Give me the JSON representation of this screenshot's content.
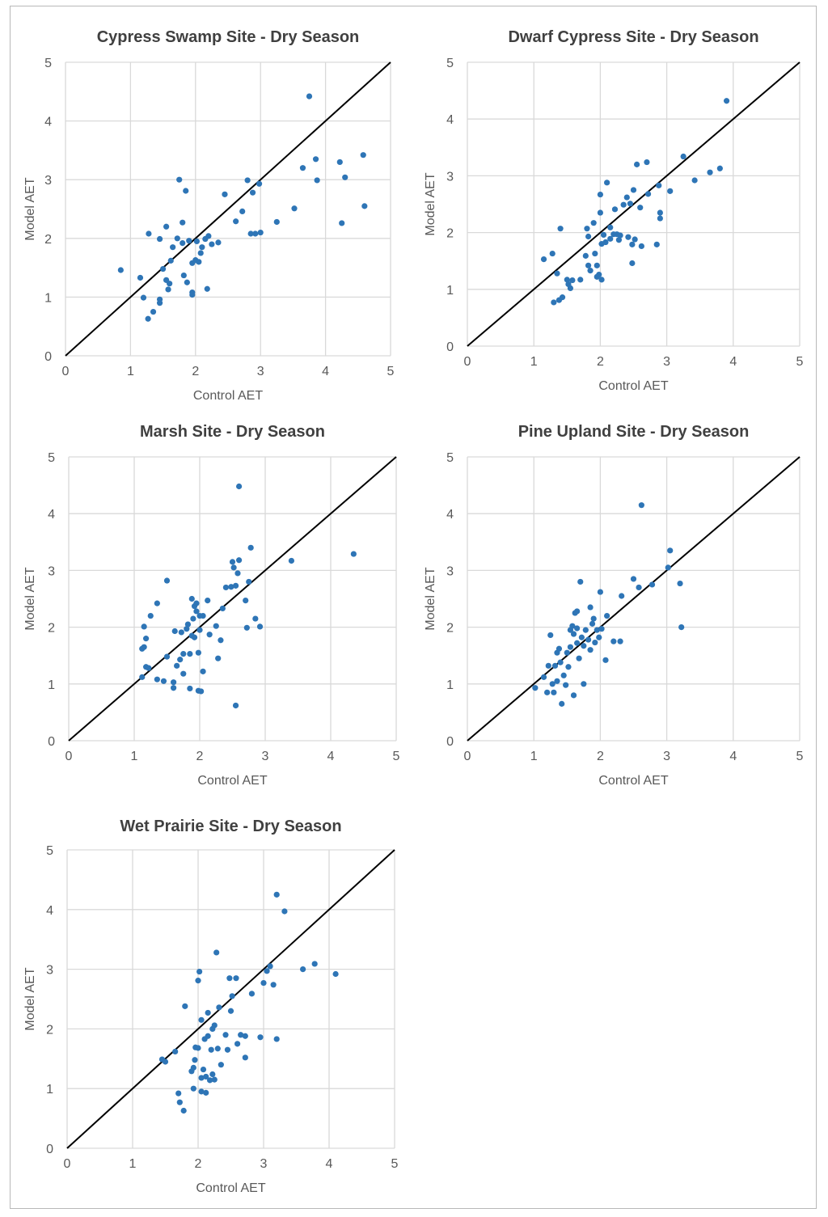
{
  "style": {
    "point_color": "#2e75b6",
    "grid_color": "#d9d9d9",
    "line_color": "#000000",
    "text_color": "#595959",
    "title_color": "#404040"
  },
  "chart_data": [
    {
      "type": "scatter",
      "title": "Cypress Swamp Site - Dry Season",
      "xlabel": "Control AET",
      "ylabel": "Model AET",
      "xlim": [
        0,
        5
      ],
      "ylim": [
        0,
        5
      ],
      "xticks": [
        0,
        1,
        2,
        3,
        4,
        5
      ],
      "yticks": [
        0,
        1,
        2,
        3,
        4,
        5
      ],
      "grid": true,
      "reference_line": "1:1",
      "points": [
        [
          0.85,
          1.46
        ],
        [
          1.15,
          1.33
        ],
        [
          1.2,
          0.99
        ],
        [
          1.28,
          2.08
        ],
        [
          1.27,
          0.63
        ],
        [
          1.35,
          0.75
        ],
        [
          1.45,
          1.99
        ],
        [
          1.45,
          0.96
        ],
        [
          1.45,
          0.9
        ],
        [
          1.5,
          1.48
        ],
        [
          1.55,
          2.2
        ],
        [
          1.55,
          1.29
        ],
        [
          1.58,
          1.13
        ],
        [
          1.6,
          1.23
        ],
        [
          1.62,
          1.62
        ],
        [
          1.65,
          1.85
        ],
        [
          1.72,
          2.0
        ],
        [
          1.75,
          3.0
        ],
        [
          1.8,
          1.92
        ],
        [
          1.8,
          2.27
        ],
        [
          1.82,
          1.37
        ],
        [
          1.85,
          2.81
        ],
        [
          1.87,
          1.25
        ],
        [
          1.9,
          1.96
        ],
        [
          1.95,
          1.08
        ],
        [
          1.95,
          1.04
        ],
        [
          1.95,
          1.58
        ],
        [
          2.0,
          1.63
        ],
        [
          2.02,
          1.95
        ],
        [
          2.05,
          1.6
        ],
        [
          2.08,
          1.75
        ],
        [
          2.1,
          1.85
        ],
        [
          2.15,
          1.99
        ],
        [
          2.18,
          1.14
        ],
        [
          2.2,
          2.04
        ],
        [
          2.25,
          1.9
        ],
        [
          2.35,
          1.93
        ],
        [
          2.45,
          2.75
        ],
        [
          2.62,
          2.29
        ],
        [
          2.72,
          2.46
        ],
        [
          2.8,
          2.99
        ],
        [
          2.85,
          2.08
        ],
        [
          2.88,
          2.78
        ],
        [
          2.92,
          2.08
        ],
        [
          2.98,
          2.93
        ],
        [
          3.0,
          2.1
        ],
        [
          3.25,
          2.28
        ],
        [
          3.52,
          2.51
        ],
        [
          3.65,
          3.2
        ],
        [
          3.75,
          4.42
        ],
        [
          3.85,
          3.35
        ],
        [
          3.87,
          2.99
        ],
        [
          4.22,
          3.3
        ],
        [
          4.25,
          2.26
        ],
        [
          4.3,
          3.04
        ],
        [
          4.58,
          3.42
        ],
        [
          4.6,
          2.55
        ]
      ]
    },
    {
      "type": "scatter",
      "title": "Dwarf Cypress Site - Dry Season",
      "xlabel": "Control AET",
      "ylabel": "Model AET",
      "xlim": [
        0,
        5
      ],
      "ylim": [
        0,
        5
      ],
      "xticks": [
        0,
        1,
        2,
        3,
        4,
        5
      ],
      "yticks": [
        0,
        1,
        2,
        3,
        4,
        5
      ],
      "grid": true,
      "reference_line": "1:1",
      "points": [
        [
          1.15,
          1.53
        ],
        [
          1.28,
          1.63
        ],
        [
          1.3,
          0.77
        ],
        [
          1.35,
          1.28
        ],
        [
          1.38,
          0.81
        ],
        [
          1.4,
          2.07
        ],
        [
          1.43,
          0.86
        ],
        [
          1.5,
          1.17
        ],
        [
          1.52,
          1.09
        ],
        [
          1.55,
          1.02
        ],
        [
          1.58,
          1.16
        ],
        [
          1.7,
          1.17
        ],
        [
          1.78,
          1.59
        ],
        [
          1.8,
          2.07
        ],
        [
          1.82,
          1.93
        ],
        [
          1.82,
          1.42
        ],
        [
          1.85,
          1.33
        ],
        [
          1.9,
          2.17
        ],
        [
          1.92,
          1.63
        ],
        [
          1.95,
          1.42
        ],
        [
          1.95,
          1.22
        ],
        [
          1.98,
          1.26
        ],
        [
          2.0,
          2.67
        ],
        [
          2.0,
          2.35
        ],
        [
          2.02,
          1.8
        ],
        [
          2.02,
          1.17
        ],
        [
          2.05,
          1.96
        ],
        [
          2.08,
          1.83
        ],
        [
          2.1,
          2.88
        ],
        [
          2.15,
          2.09
        ],
        [
          2.15,
          1.89
        ],
        [
          2.2,
          1.97
        ],
        [
          2.22,
          2.41
        ],
        [
          2.25,
          1.97
        ],
        [
          2.28,
          1.87
        ],
        [
          2.3,
          1.95
        ],
        [
          2.35,
          2.49
        ],
        [
          2.4,
          2.62
        ],
        [
          2.42,
          1.92
        ],
        [
          2.45,
          2.51
        ],
        [
          2.48,
          1.46
        ],
        [
          2.48,
          1.79
        ],
        [
          2.5,
          2.75
        ],
        [
          2.52,
          1.88
        ],
        [
          2.55,
          3.2
        ],
        [
          2.6,
          2.44
        ],
        [
          2.62,
          1.76
        ],
        [
          2.7,
          3.24
        ],
        [
          2.72,
          2.68
        ],
        [
          2.85,
          1.79
        ],
        [
          2.88,
          2.83
        ],
        [
          2.9,
          2.35
        ],
        [
          2.9,
          2.25
        ],
        [
          3.05,
          2.73
        ],
        [
          3.25,
          3.34
        ],
        [
          3.42,
          2.92
        ],
        [
          3.65,
          3.06
        ],
        [
          3.8,
          3.13
        ],
        [
          3.9,
          4.32
        ]
      ]
    },
    {
      "type": "scatter",
      "title": "Marsh Site - Dry Season",
      "xlabel": "Control AET",
      "ylabel": "Model AET",
      "xlim": [
        0,
        5
      ],
      "ylim": [
        0,
        5
      ],
      "xticks": [
        0,
        1,
        2,
        3,
        4,
        5
      ],
      "yticks": [
        0,
        1,
        2,
        3,
        4,
        5
      ],
      "grid": true,
      "reference_line": "1:1",
      "points": [
        [
          1.12,
          1.62
        ],
        [
          1.12,
          1.12
        ],
        [
          1.15,
          2.01
        ],
        [
          1.15,
          1.65
        ],
        [
          1.18,
          1.8
        ],
        [
          1.18,
          1.3
        ],
        [
          1.22,
          1.28
        ],
        [
          1.25,
          2.2
        ],
        [
          1.35,
          2.42
        ],
        [
          1.35,
          1.08
        ],
        [
          1.45,
          1.05
        ],
        [
          1.5,
          2.82
        ],
        [
          1.5,
          1.48
        ],
        [
          1.6,
          1.03
        ],
        [
          1.6,
          0.93
        ],
        [
          1.62,
          1.93
        ],
        [
          1.65,
          1.32
        ],
        [
          1.7,
          1.43
        ],
        [
          1.72,
          1.91
        ],
        [
          1.75,
          1.53
        ],
        [
          1.75,
          1.18
        ],
        [
          1.8,
          1.97
        ],
        [
          1.82,
          2.05
        ],
        [
          1.85,
          1.53
        ],
        [
          1.85,
          0.92
        ],
        [
          1.88,
          2.5
        ],
        [
          1.88,
          1.85
        ],
        [
          1.9,
          2.15
        ],
        [
          1.92,
          2.37
        ],
        [
          1.92,
          1.82
        ],
        [
          1.95,
          2.42
        ],
        [
          1.95,
          2.28
        ],
        [
          1.98,
          1.55
        ],
        [
          1.98,
          0.88
        ],
        [
          2.0,
          2.2
        ],
        [
          2.0,
          1.95
        ],
        [
          2.02,
          0.87
        ],
        [
          2.05,
          2.2
        ],
        [
          2.05,
          1.22
        ],
        [
          2.12,
          2.47
        ],
        [
          2.15,
          1.87
        ],
        [
          2.25,
          2.02
        ],
        [
          2.28,
          1.45
        ],
        [
          2.32,
          1.77
        ],
        [
          2.35,
          2.33
        ],
        [
          2.4,
          2.7
        ],
        [
          2.48,
          2.71
        ],
        [
          2.5,
          3.15
        ],
        [
          2.52,
          3.05
        ],
        [
          2.55,
          2.73
        ],
        [
          2.55,
          0.62
        ],
        [
          2.58,
          2.95
        ],
        [
          2.6,
          3.18
        ],
        [
          2.6,
          4.48
        ],
        [
          2.7,
          2.47
        ],
        [
          2.72,
          1.99
        ],
        [
          2.75,
          2.8
        ],
        [
          2.78,
          3.4
        ],
        [
          2.85,
          2.15
        ],
        [
          2.92,
          2.01
        ],
        [
          3.4,
          3.17
        ],
        [
          4.35,
          3.29
        ]
      ]
    },
    {
      "type": "scatter",
      "title": "Pine Upland Site - Dry Season",
      "xlabel": "Control AET",
      "ylabel": "Model AET",
      "xlim": [
        0,
        5
      ],
      "ylim": [
        0,
        5
      ],
      "xticks": [
        0,
        1,
        2,
        3,
        4,
        5
      ],
      "yticks": [
        0,
        1,
        2,
        3,
        4,
        5
      ],
      "grid": true,
      "reference_line": "1:1",
      "points": [
        [
          1.02,
          0.93
        ],
        [
          1.15,
          1.12
        ],
        [
          1.2,
          0.85
        ],
        [
          1.22,
          1.32
        ],
        [
          1.25,
          1.86
        ],
        [
          1.28,
          1.0
        ],
        [
          1.3,
          0.85
        ],
        [
          1.32,
          1.32
        ],
        [
          1.35,
          1.55
        ],
        [
          1.35,
          1.05
        ],
        [
          1.38,
          1.62
        ],
        [
          1.4,
          1.38
        ],
        [
          1.42,
          0.65
        ],
        [
          1.45,
          1.15
        ],
        [
          1.48,
          0.98
        ],
        [
          1.5,
          1.55
        ],
        [
          1.52,
          1.3
        ],
        [
          1.55,
          1.95
        ],
        [
          1.55,
          1.65
        ],
        [
          1.58,
          2.02
        ],
        [
          1.6,
          1.88
        ],
        [
          1.6,
          0.8
        ],
        [
          1.62,
          2.25
        ],
        [
          1.65,
          2.28
        ],
        [
          1.65,
          1.98
        ],
        [
          1.65,
          1.72
        ],
        [
          1.68,
          1.45
        ],
        [
          1.7,
          2.8
        ],
        [
          1.72,
          1.82
        ],
        [
          1.75,
          1.67
        ],
        [
          1.75,
          1.0
        ],
        [
          1.78,
          1.95
        ],
        [
          1.82,
          1.78
        ],
        [
          1.85,
          2.35
        ],
        [
          1.85,
          1.6
        ],
        [
          1.88,
          2.06
        ],
        [
          1.9,
          2.15
        ],
        [
          1.92,
          1.73
        ],
        [
          1.95,
          1.95
        ],
        [
          1.98,
          1.82
        ],
        [
          2.0,
          2.62
        ],
        [
          2.02,
          1.97
        ],
        [
          2.08,
          1.42
        ],
        [
          2.1,
          2.2
        ],
        [
          2.2,
          1.75
        ],
        [
          2.3,
          1.75
        ],
        [
          2.32,
          2.55
        ],
        [
          2.5,
          2.85
        ],
        [
          2.58,
          2.7
        ],
        [
          2.62,
          4.15
        ],
        [
          2.78,
          2.75
        ],
        [
          3.02,
          3.05
        ],
        [
          3.05,
          3.35
        ],
        [
          3.2,
          2.77
        ],
        [
          3.22,
          2.0
        ]
      ]
    },
    {
      "type": "scatter",
      "title": "Wet Prairie Site - Dry Season",
      "xlabel": "Control AET",
      "ylabel": "Model AET",
      "xlim": [
        0,
        5
      ],
      "ylim": [
        0,
        5
      ],
      "xticks": [
        0,
        1,
        2,
        3,
        4,
        5
      ],
      "yticks": [
        0,
        1,
        2,
        3,
        4,
        5
      ],
      "grid": true,
      "reference_line": "1:1",
      "points": [
        [
          1.45,
          1.49
        ],
        [
          1.5,
          1.45
        ],
        [
          1.65,
          1.62
        ],
        [
          1.7,
          0.92
        ],
        [
          1.72,
          0.77
        ],
        [
          1.78,
          0.63
        ],
        [
          1.8,
          2.38
        ],
        [
          1.9,
          1.29
        ],
        [
          1.93,
          1.35
        ],
        [
          1.93,
          1.0
        ],
        [
          1.95,
          1.48
        ],
        [
          1.96,
          1.69
        ],
        [
          2.0,
          1.68
        ],
        [
          2.0,
          2.81
        ],
        [
          2.02,
          2.96
        ],
        [
          2.05,
          2.15
        ],
        [
          2.05,
          1.18
        ],
        [
          2.05,
          0.95
        ],
        [
          2.08,
          1.32
        ],
        [
          2.1,
          1.83
        ],
        [
          2.12,
          1.2
        ],
        [
          2.12,
          0.93
        ],
        [
          2.15,
          2.27
        ],
        [
          2.15,
          1.88
        ],
        [
          2.18,
          1.14
        ],
        [
          2.2,
          1.65
        ],
        [
          2.22,
          2.0
        ],
        [
          2.22,
          1.24
        ],
        [
          2.25,
          2.06
        ],
        [
          2.25,
          1.15
        ],
        [
          2.28,
          3.28
        ],
        [
          2.3,
          1.67
        ],
        [
          2.32,
          2.36
        ],
        [
          2.35,
          1.4
        ],
        [
          2.42,
          1.9
        ],
        [
          2.45,
          1.65
        ],
        [
          2.48,
          2.85
        ],
        [
          2.5,
          2.3
        ],
        [
          2.52,
          2.55
        ],
        [
          2.58,
          2.85
        ],
        [
          2.6,
          1.75
        ],
        [
          2.65,
          1.9
        ],
        [
          2.72,
          1.88
        ],
        [
          2.72,
          1.52
        ],
        [
          2.82,
          2.59
        ],
        [
          2.95,
          1.86
        ],
        [
          3.0,
          2.77
        ],
        [
          3.05,
          2.97
        ],
        [
          3.1,
          3.05
        ],
        [
          3.15,
          2.74
        ],
        [
          3.2,
          4.25
        ],
        [
          3.2,
          1.83
        ],
        [
          3.32,
          3.97
        ],
        [
          3.6,
          3.0
        ],
        [
          3.78,
          3.09
        ],
        [
          4.1,
          2.92
        ]
      ]
    }
  ]
}
